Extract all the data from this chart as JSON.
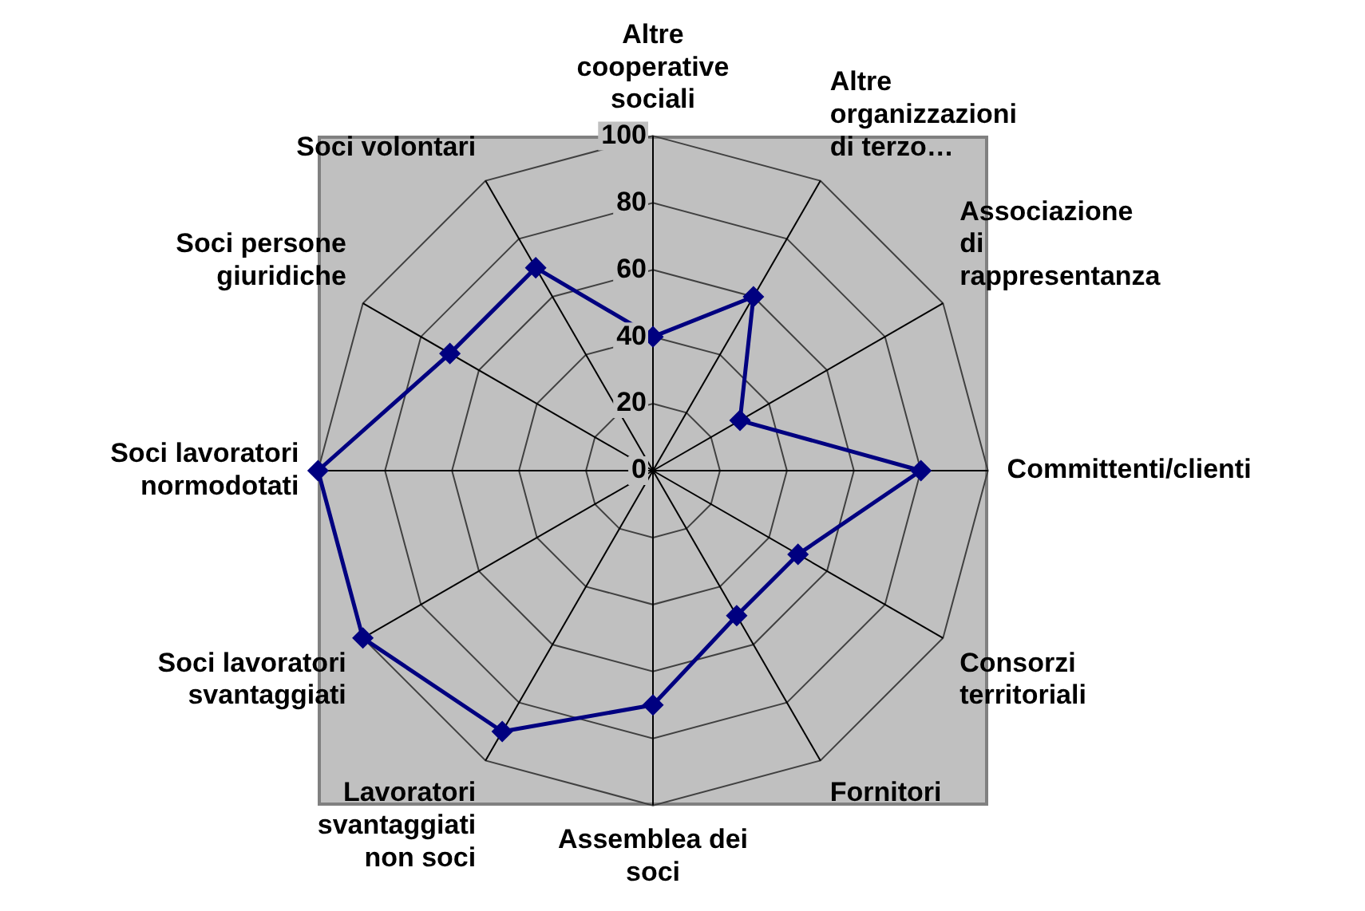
{
  "chart_data": {
    "type": "radar",
    "categories": [
      "Altre cooperative sociali",
      "Altre organizzazioni di terzo…",
      "Associazione di rappresentanza",
      "Committenti/clienti",
      "Consorzi territoriali",
      "Fornitori",
      "Assemblea dei soci",
      "Lavoratori svantaggiati non soci",
      "Soci lavoratori svantaggiati",
      "Soci lavoratori normodotati",
      "Soci persone giuridiche",
      "Soci volontari"
    ],
    "series": [
      {
        "color": "#000080",
        "values": [
          40,
          60,
          30,
          80,
          50,
          50,
          70,
          90,
          100,
          100,
          70,
          70
        ]
      }
    ],
    "ylim": [
      0,
      100
    ],
    "yticks": [
      0,
      20,
      40,
      60,
      80,
      100
    ],
    "grid": true,
    "legend": false,
    "marker": "diamond",
    "line_style": "solid"
  }
}
